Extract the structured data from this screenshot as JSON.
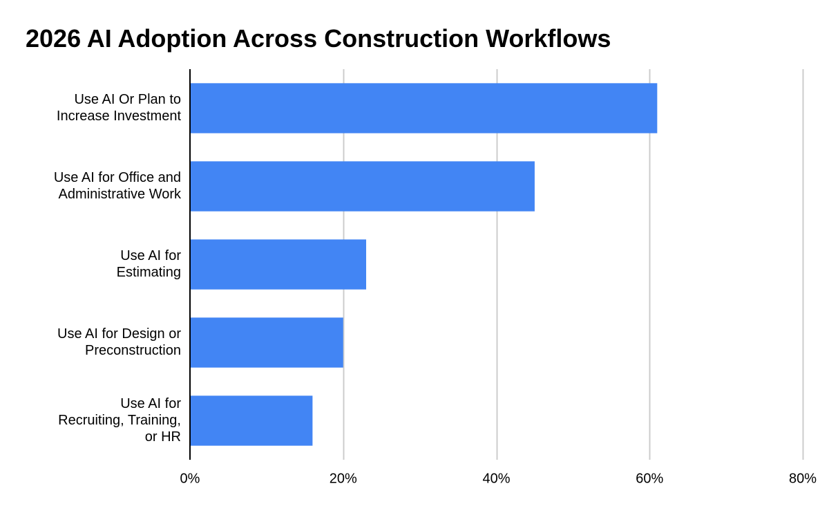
{
  "chart_data": {
    "type": "bar",
    "orientation": "horizontal",
    "title": "2026 AI Adoption Across Construction Workflows",
    "categories": [
      [
        "Use AI Or Plan to",
        "Increase Investment"
      ],
      [
        "Use AI for Office and",
        "Administrative Work"
      ],
      [
        "Use AI for",
        "Estimating"
      ],
      [
        "Use AI for Design or",
        "Preconstruction"
      ],
      [
        "Use AI for",
        "Recruiting, Training,",
        "or HR"
      ]
    ],
    "values": [
      61,
      45,
      23,
      20,
      16
    ],
    "xlim": [
      0,
      80
    ],
    "xticks": [
      0,
      20,
      40,
      60,
      80
    ],
    "xtick_labels": [
      "0%",
      "20%",
      "40%",
      "60%",
      "80%"
    ],
    "xlabel": "",
    "ylabel": "",
    "grid": true,
    "legend": "none",
    "bar_color": "#4285f4",
    "grid_color": "#cccccc",
    "axis_color": "#000000"
  }
}
